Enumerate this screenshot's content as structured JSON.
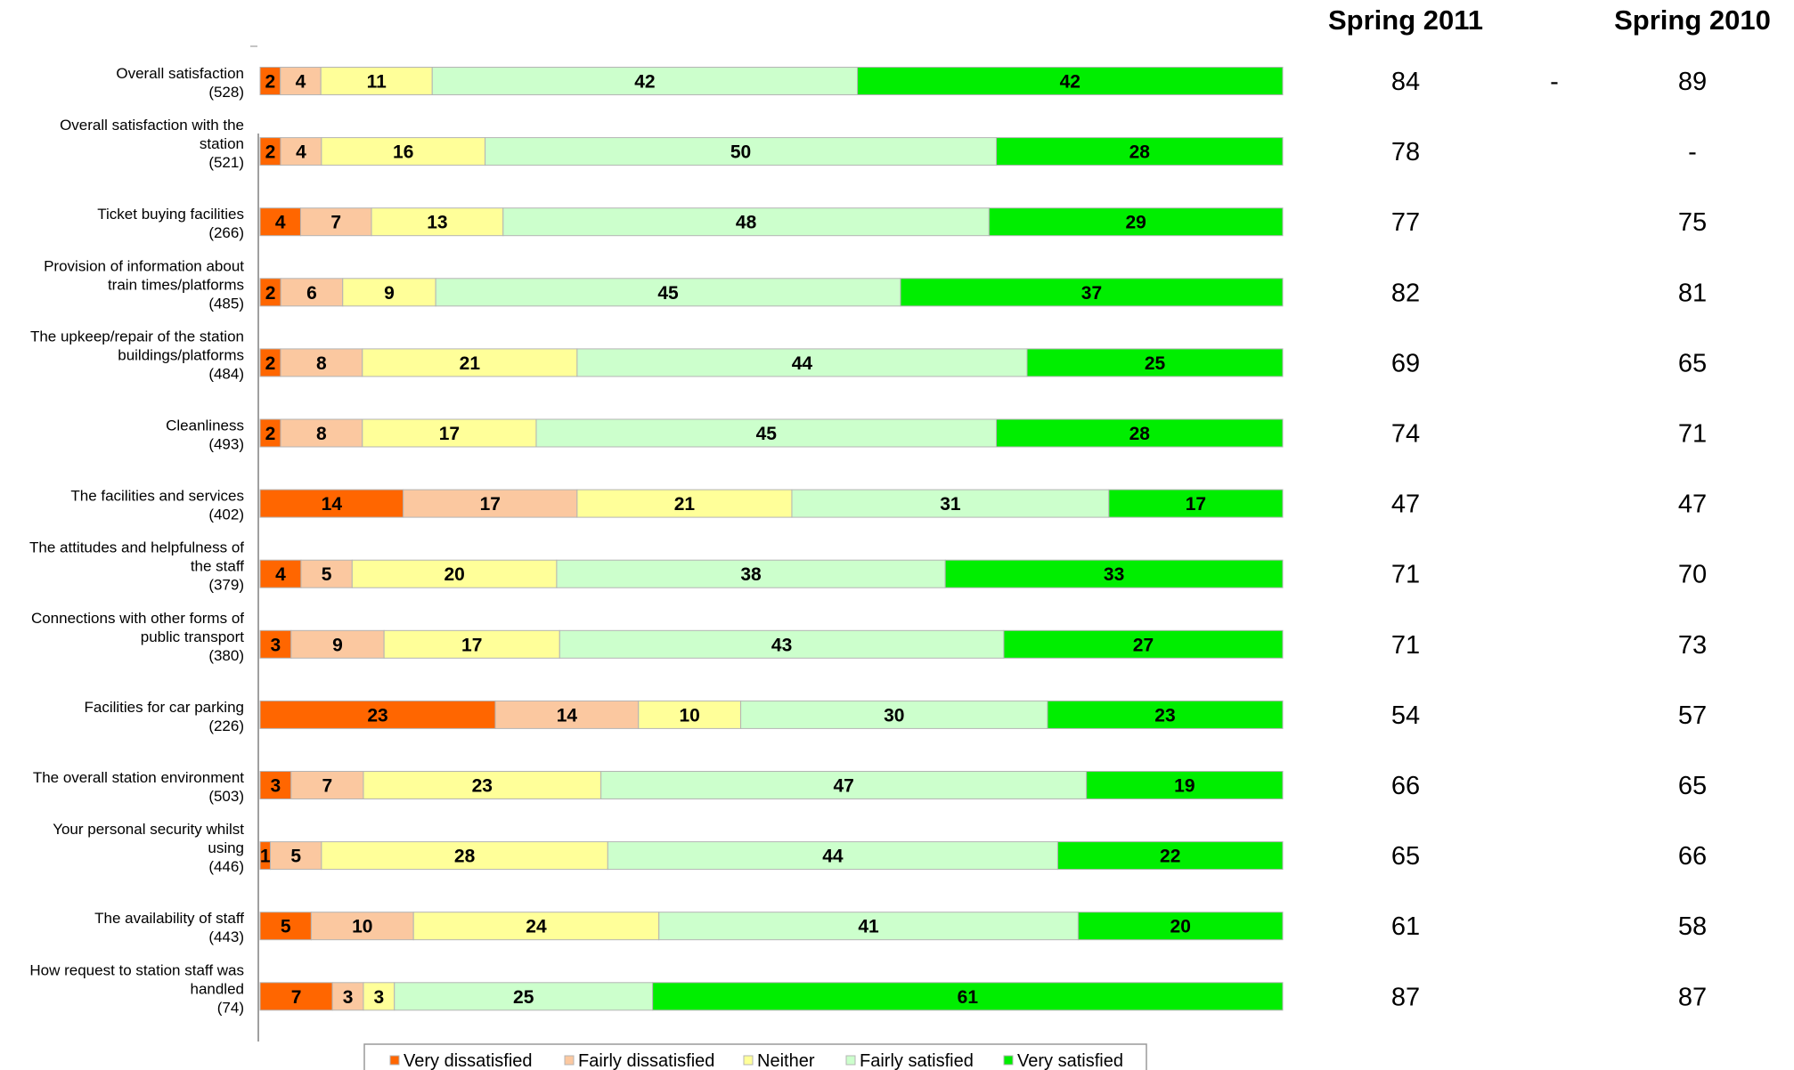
{
  "chart_data": {
    "type": "bar",
    "stacked": true,
    "orientation": "horizontal",
    "xlim": [
      0,
      100
    ],
    "legend_position": "bottom",
    "series": [
      {
        "name": "Very dissatisfied",
        "color": "#ff6600"
      },
      {
        "name": "Fairly dissatisfied",
        "color": "#fbc8a0"
      },
      {
        "name": "Neither",
        "color": "#ffff99"
      },
      {
        "name": "Fairly satisfied",
        "color": "#ccffcc"
      },
      {
        "name": "Very satisfied",
        "color": "#00ee00"
      }
    ],
    "columns": [
      "Spring 2011",
      "Spring 2010"
    ],
    "rows": [
      {
        "label": [
          "Overall satisfaction",
          "(528)"
        ],
        "values": [
          2,
          4,
          11,
          42,
          42
        ],
        "spring2011": "84",
        "marker": "-",
        "spring2010": "89"
      },
      {
        "label": [
          "Overall satisfaction  with the",
          "station",
          "(521)"
        ],
        "values": [
          2,
          4,
          16,
          50,
          28
        ],
        "spring2011": "78",
        "marker": "",
        "spring2010": "-"
      },
      {
        "label": [
          "Ticket buying facilities",
          "(266)"
        ],
        "values": [
          4,
          7,
          13,
          48,
          29
        ],
        "spring2011": "77",
        "marker": "",
        "spring2010": "75"
      },
      {
        "label": [
          "Provision of information about",
          "train times/platforms",
          "(485)"
        ],
        "values": [
          2,
          6,
          9,
          45,
          37
        ],
        "spring2011": "82",
        "marker": "",
        "spring2010": "81"
      },
      {
        "label": [
          "The upkeep/repair of the station",
          "buildings/platforms",
          "(484)"
        ],
        "values": [
          2,
          8,
          21,
          44,
          25
        ],
        "spring2011": "69",
        "marker": "",
        "spring2010": "65"
      },
      {
        "label": [
          "Cleanliness",
          "(493)"
        ],
        "values": [
          2,
          8,
          17,
          45,
          28
        ],
        "spring2011": "74",
        "marker": "",
        "spring2010": "71"
      },
      {
        "label": [
          "The facilities and services",
          "(402)"
        ],
        "values": [
          14,
          17,
          21,
          31,
          17
        ],
        "spring2011": "47",
        "marker": "",
        "spring2010": "47"
      },
      {
        "label": [
          "The attitudes and helpfulness of",
          "the staff",
          "(379)"
        ],
        "values": [
          4,
          5,
          20,
          38,
          33
        ],
        "spring2011": "71",
        "marker": "",
        "spring2010": "70"
      },
      {
        "label": [
          "Connections with other forms of",
          "public transport",
          "(380)"
        ],
        "values": [
          3,
          9,
          17,
          43,
          27
        ],
        "spring2011": "71",
        "marker": "",
        "spring2010": "73"
      },
      {
        "label": [
          "Facilities for car parking",
          "(226)"
        ],
        "values": [
          23,
          14,
          10,
          30,
          23
        ],
        "spring2011": "54",
        "marker": "",
        "spring2010": "57"
      },
      {
        "label": [
          "The overall station environment",
          "(503)"
        ],
        "values": [
          3,
          7,
          23,
          47,
          19
        ],
        "spring2011": "66",
        "marker": "",
        "spring2010": "65"
      },
      {
        "label": [
          "Your personal security whilst",
          "using",
          "(446)"
        ],
        "values": [
          1,
          5,
          28,
          44,
          22
        ],
        "spring2011": "65",
        "marker": "",
        "spring2010": "66"
      },
      {
        "label": [
          "The availability of staff",
          "(443)"
        ],
        "values": [
          5,
          10,
          24,
          41,
          20
        ],
        "spring2011": "61",
        "marker": "",
        "spring2010": "58"
      },
      {
        "label": [
          "How request to station staff was",
          "handled",
          "(74)"
        ],
        "values": [
          7,
          3,
          3,
          25,
          61
        ],
        "spring2011": "87",
        "marker": "",
        "spring2010": "87"
      }
    ]
  }
}
